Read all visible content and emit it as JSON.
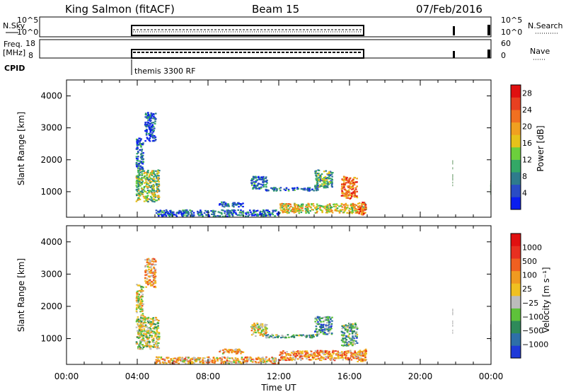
{
  "header": {
    "station": "King Salmon (fitACF)",
    "beam": "Beam 15",
    "date": "07/Feb/2016"
  },
  "top_panels": {
    "nsky_label": "N.Sky",
    "nsky_ticks": [
      "10^5",
      "10^0"
    ],
    "nsearch_label": "N.Search",
    "nsearch_ticks": [
      "10^5",
      "10^0"
    ],
    "freq_label_1": "Freq.",
    "freq_label_2": "[MHz]",
    "freq_ticks": [
      "18",
      "8"
    ],
    "nave_label": "Nave",
    "nave_ticks": [
      "60",
      "0"
    ],
    "cpid_label": "CPID",
    "cpid_name": "themis 3300 RF"
  },
  "chart_data": [
    {
      "type": "heatmap",
      "name": "power-panel",
      "ylabel": "Slant Range [km]",
      "xlabel": "",
      "y_ticks": [
        "1000",
        "2000",
        "3000",
        "4000"
      ],
      "ylim": [
        200,
        4500
      ],
      "xlim": [
        0,
        24
      ],
      "colorbar": {
        "label": "Power [dB]",
        "ticks": [
          "4",
          "8",
          "12",
          "16",
          "20",
          "24",
          "28"
        ],
        "colors": [
          "#0a1ef0",
          "#2a4cc4",
          "#2e7b8c",
          "#33a866",
          "#6ccf3c",
          "#e6c21a",
          "#f0a020",
          "#f07020",
          "#e84020",
          "#e01010"
        ]
      },
      "blobs": [
        {
          "t0": 3.9,
          "t1": 5.2,
          "r0": 700,
          "r1": 1700,
          "level": 0.45
        },
        {
          "t0": 3.9,
          "t1": 4.3,
          "r0": 1700,
          "r1": 2700,
          "level": 0.2
        },
        {
          "t0": 4.4,
          "t1": 5.0,
          "r0": 2600,
          "r1": 3500,
          "level": 0.15
        },
        {
          "t0": 10.4,
          "t1": 11.3,
          "r0": 1100,
          "r1": 1500,
          "level": 0.2
        },
        {
          "t0": 11.2,
          "t1": 14.2,
          "r0": 1050,
          "r1": 1150,
          "level": 0.2
        },
        {
          "t0": 14.0,
          "t1": 15.0,
          "r0": 1150,
          "r1": 1700,
          "level": 0.35
        },
        {
          "t0": 15.5,
          "t1": 16.4,
          "r0": 800,
          "r1": 1500,
          "level": 0.75
        },
        {
          "t0": 12.0,
          "t1": 16.9,
          "r0": 350,
          "r1": 650,
          "level": 0.55
        },
        {
          "t0": 16.4,
          "t1": 16.9,
          "r0": 300,
          "r1": 700,
          "level": 0.85
        },
        {
          "t0": 8.6,
          "t1": 10.0,
          "r0": 550,
          "r1": 700,
          "level": 0.15
        },
        {
          "t0": 5.0,
          "t1": 12.0,
          "r0": 250,
          "r1": 450,
          "level": 0.2
        }
      ]
    },
    {
      "type": "heatmap",
      "name": "velocity-panel",
      "ylabel": "Slant Range [km]",
      "xlabel": "Time UT",
      "x_ticks": [
        "00:00",
        "04:00",
        "08:00",
        "12:00",
        "16:00",
        "20:00",
        "00:00"
      ],
      "y_ticks": [
        "1000",
        "2000",
        "3000",
        "4000"
      ],
      "ylim": [
        200,
        4500
      ],
      "xlim": [
        0,
        24
      ],
      "colorbar": {
        "label": "Velocity [m s⁻¹]",
        "ticks": [
          "1000",
          "500",
          "100",
          "25",
          "−25",
          "−100",
          "−500",
          "−1000"
        ],
        "colors": [
          "#1f3ad8",
          "#2e6fa8",
          "#2e8a5a",
          "#5ec23a",
          "#bcbcbc",
          "#f0c020",
          "#f09a20",
          "#f06020",
          "#e83020",
          "#e01010"
        ]
      },
      "blobs": [
        {
          "t0": 3.9,
          "t1": 5.2,
          "r0": 700,
          "r1": 1700,
          "level": 0.45
        },
        {
          "t0": 3.9,
          "t1": 4.3,
          "r0": 1700,
          "r1": 2700,
          "level": 0.5
        },
        {
          "t0": 4.4,
          "t1": 5.0,
          "r0": 2600,
          "r1": 3500,
          "level": 0.6
        },
        {
          "t0": 10.4,
          "t1": 11.3,
          "r0": 1100,
          "r1": 1500,
          "level": 0.5
        },
        {
          "t0": 11.2,
          "t1": 14.2,
          "r0": 1050,
          "r1": 1150,
          "level": 0.3
        },
        {
          "t0": 14.0,
          "t1": 15.0,
          "r0": 1150,
          "r1": 1700,
          "level": 0.25
        },
        {
          "t0": 15.5,
          "t1": 16.4,
          "r0": 800,
          "r1": 1500,
          "level": 0.3
        },
        {
          "t0": 12.0,
          "t1": 16.9,
          "r0": 350,
          "r1": 650,
          "level": 0.65
        },
        {
          "t0": 16.4,
          "t1": 16.9,
          "r0": 300,
          "r1": 700,
          "level": 0.7
        },
        {
          "t0": 8.6,
          "t1": 10.0,
          "r0": 550,
          "r1": 700,
          "level": 0.6
        },
        {
          "t0": 5.0,
          "t1": 12.0,
          "r0": 250,
          "r1": 450,
          "level": 0.6
        }
      ]
    }
  ]
}
